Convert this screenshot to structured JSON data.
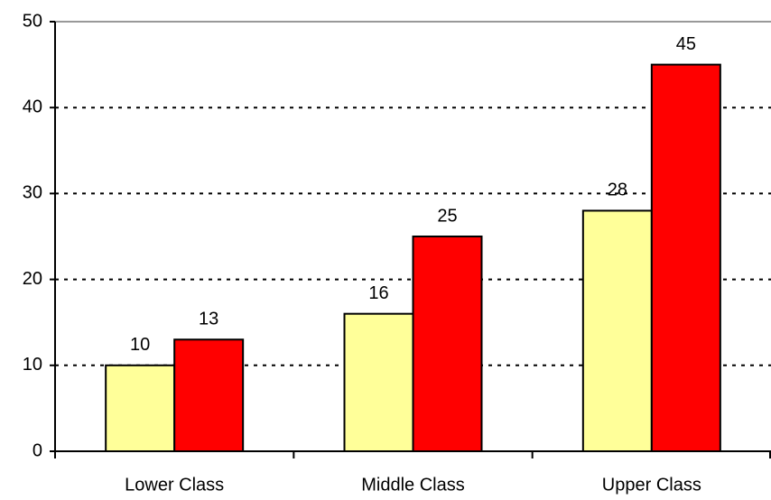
{
  "chart_data": {
    "type": "bar",
    "categories": [
      "Lower Class",
      "Middle Class",
      "Upper Class"
    ],
    "series": [
      {
        "color": "#ffff99",
        "values": [
          10,
          16,
          28
        ]
      },
      {
        "color": "#ff0000",
        "values": [
          13,
          25,
          45
        ]
      }
    ],
    "ylim": [
      0,
      50
    ],
    "yticks": [
      0,
      10,
      20,
      30,
      40,
      50
    ],
    "grid": true
  }
}
